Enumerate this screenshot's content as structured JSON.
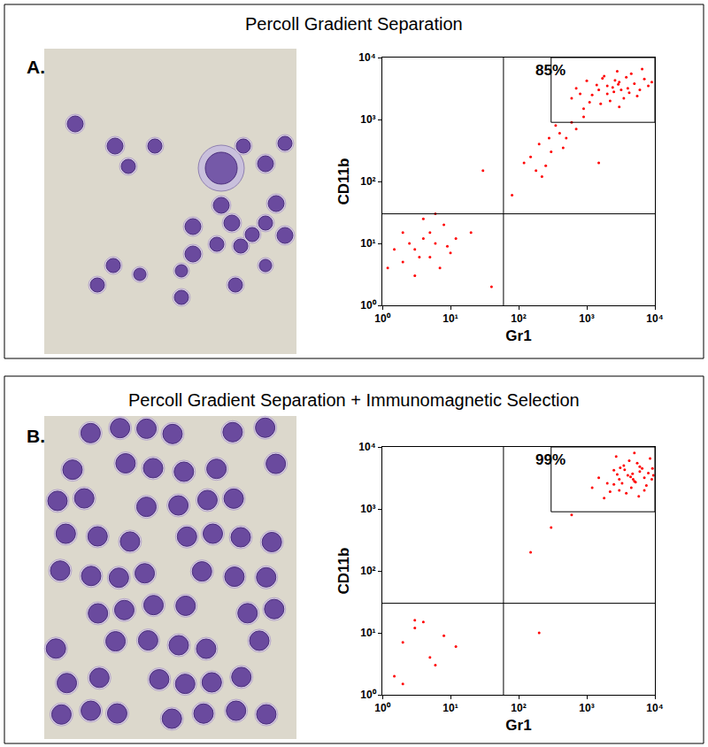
{
  "chart_data": [
    {
      "type": "scatter",
      "panel": "A.",
      "title": "Percoll Gradient Separation",
      "x_label": "Gr1",
      "y_label": "CD11b",
      "color": "#ff0000",
      "marker": "circle",
      "log": true,
      "grid": false,
      "xlim": [
        1,
        10000
      ],
      "ylim": [
        1,
        10000
      ],
      "xticks": [
        {
          "value": 1,
          "label": "10⁰"
        },
        {
          "value": 10,
          "label": "10¹"
        },
        {
          "value": 100,
          "label": "10²"
        },
        {
          "value": 1000,
          "label": "10³"
        },
        {
          "value": 10000,
          "label": "10⁴"
        }
      ],
      "yticks": [
        {
          "value": 1,
          "label": "10⁰"
        },
        {
          "value": 10,
          "label": "10¹"
        },
        {
          "value": 100,
          "label": "10²"
        },
        {
          "value": 1000,
          "label": "10³"
        },
        {
          "value": 10000,
          "label": "10⁴"
        }
      ],
      "quadrant": {
        "x": 60,
        "y": 30
      },
      "gate": {
        "x": [
          300,
          10000
        ],
        "y": [
          900,
          10000
        ],
        "value": 85,
        "label": "85%"
      },
      "x": [
        1500,
        2000,
        2500,
        3000,
        1200,
        1800,
        4000,
        5000,
        3500,
        2200,
        800,
        1000,
        6000,
        7000,
        2800,
        1600,
        900,
        4500,
        3200,
        2600,
        1400,
        5500,
        8000,
        700,
        2000,
        3800,
        1100,
        6500,
        4200,
        1700,
        2400,
        3000,
        9000,
        600,
        2900,
        150,
        200,
        300,
        250,
        400,
        500,
        180,
        350,
        600,
        120,
        450,
        700,
        280,
        220,
        900,
        2,
        3,
        4,
        5,
        6,
        2,
        8,
        3,
        1.5,
        10,
        4,
        7,
        5,
        2.5,
        12,
        6,
        1.2,
        3.5,
        9,
        20,
        40,
        80,
        1500,
        30
      ],
      "values": [
        3000,
        3500,
        2800,
        4000,
        2500,
        5000,
        3200,
        3800,
        2200,
        2000,
        2600,
        4200,
        3000,
        4500,
        6000,
        1800,
        1500,
        5500,
        3000,
        4300,
        3600,
        2400,
        3500,
        3200,
        2600,
        4800,
        1900,
        6500,
        2700,
        4600,
        3300,
        1600,
        4000,
        2200,
        3700,
        250,
        400,
        300,
        180,
        600,
        500,
        150,
        800,
        900,
        200,
        350,
        700,
        500,
        120,
        1100,
        5,
        8,
        12,
        6,
        10,
        15,
        20,
        3,
        8,
        7,
        25,
        4,
        15,
        10,
        12,
        30,
        4,
        6,
        9,
        15,
        2,
        60,
        200,
        150
      ]
    },
    {
      "type": "scatter",
      "panel": "B.",
      "title": "Percoll Gradient Separation + Immunomagnetic Selection",
      "x_label": "Gr1",
      "y_label": "CD11b",
      "color": "#ff0000",
      "marker": "circle",
      "log": true,
      "grid": false,
      "xlim": [
        1,
        10000
      ],
      "ylim": [
        1,
        10000
      ],
      "xticks": [
        {
          "value": 1,
          "label": "10⁰"
        },
        {
          "value": 10,
          "label": "10¹"
        },
        {
          "value": 100,
          "label": "10²"
        },
        {
          "value": 1000,
          "label": "10³"
        },
        {
          "value": 10000,
          "label": "10⁴"
        }
      ],
      "yticks": [
        {
          "value": 1,
          "label": "10⁰"
        },
        {
          "value": 10,
          "label": "10¹"
        },
        {
          "value": 100,
          "label": "10²"
        },
        {
          "value": 1000,
          "label": "10³"
        },
        {
          "value": 10000,
          "label": "10⁴"
        }
      ],
      "quadrant": {
        "x": 60,
        "y": 30
      },
      "gate": {
        "x": [
          300,
          10000
        ],
        "y": [
          900,
          10000
        ],
        "value": 99,
        "label": "99%"
      },
      "x": [
        3000,
        4000,
        5000,
        6000,
        2500,
        3500,
        7000,
        8000,
        4500,
        3000,
        2000,
        2500,
        9000,
        6500,
        4200,
        3800,
        1800,
        5500,
        4800,
        3600,
        2800,
        7500,
        9500,
        1500,
        3300,
        6000,
        2200,
        8500,
        5200,
        3100,
        4400,
        5800,
        9200,
        1200,
        4700,
        7000,
        2700,
        5000,
        2,
        3,
        5,
        8,
        4,
        6,
        1.5,
        12,
        2,
        300,
        150,
        200,
        3,
        600
      ],
      "values": [
        3000,
        3500,
        2800,
        4000,
        2500,
        5000,
        3200,
        3800,
        2200,
        2000,
        2600,
        4200,
        3000,
        4500,
        6000,
        1800,
        1500,
        5500,
        3000,
        4300,
        3600,
        2400,
        3500,
        3200,
        2600,
        4800,
        1900,
        6500,
        2700,
        4600,
        3300,
        1600,
        4500,
        2200,
        3700,
        2000,
        7000,
        8000,
        7,
        12,
        4,
        9,
        15,
        3,
        2,
        6,
        1.5,
        500,
        200,
        10,
        16,
        800
      ]
    }
  ]
}
